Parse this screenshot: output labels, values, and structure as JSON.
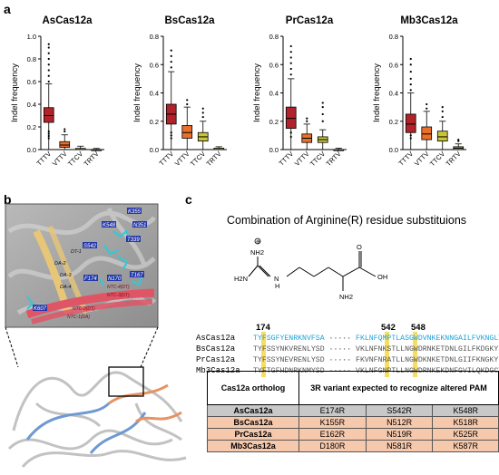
{
  "panel_a": {
    "letter": "a",
    "chart_data": [
      {
        "type": "box",
        "title": "AsCas12a",
        "ylabel": "Indel frequency",
        "ylim": [
          0,
          1.0
        ],
        "yticks": [
          "0.0",
          "0.2",
          "0.4",
          "0.6",
          "0.8",
          "1.0"
        ],
        "categories": [
          "TTTV",
          "VTTV",
          "TTCV",
          "TRTV"
        ],
        "boxes": [
          {
            "min": 0.0,
            "q1": 0.24,
            "median": 0.3,
            "q3": 0.37,
            "max": 0.58,
            "color": "#b0232b",
            "outliers": [
              0.6,
              0.65,
              0.7,
              0.75,
              0.8,
              0.85,
              0.9,
              0.93,
              0.16,
              0.14,
              0.12,
              0.1
            ]
          },
          {
            "min": 0.0,
            "q1": 0.02,
            "median": 0.04,
            "q3": 0.07,
            "max": 0.13,
            "color": "#e8702a",
            "outliers": [
              0.16,
              0.18
            ]
          },
          {
            "min": 0.0,
            "q1": 0.0,
            "median": 0.0,
            "q3": 0.01,
            "max": 0.03,
            "color": "#c9c43a",
            "outliers": []
          },
          {
            "min": 0.0,
            "q1": 0.0,
            "median": 0.0,
            "q3": 0.0,
            "max": 0.01,
            "color": "#9fbf6a",
            "outliers": []
          }
        ]
      },
      {
        "type": "box",
        "title": "BsCas12a",
        "ylabel": "Indel frequency",
        "ylim": [
          0,
          0.8
        ],
        "yticks": [
          "0.0",
          "0.2",
          "0.4",
          "0.6",
          "0.8"
        ],
        "categories": [
          "TTTV",
          "VTTV",
          "TTCV",
          "TRTV"
        ],
        "boxes": [
          {
            "min": 0.0,
            "q1": 0.18,
            "median": 0.25,
            "q3": 0.32,
            "max": 0.55,
            "color": "#b0232b",
            "outliers": [
              0.58,
              0.62,
              0.66,
              0.7,
              0.12,
              0.1,
              0.08
            ]
          },
          {
            "min": 0.0,
            "q1": 0.08,
            "median": 0.12,
            "q3": 0.17,
            "max": 0.3,
            "color": "#e8702a",
            "outliers": [
              0.32,
              0.35
            ]
          },
          {
            "min": 0.0,
            "q1": 0.06,
            "median": 0.09,
            "q3": 0.12,
            "max": 0.2,
            "color": "#c9c43a",
            "outliers": [
              0.23,
              0.26,
              0.29
            ]
          },
          {
            "min": 0.0,
            "q1": 0.0,
            "median": 0.0,
            "q3": 0.01,
            "max": 0.02,
            "color": "#9fbf6a",
            "outliers": []
          }
        ]
      },
      {
        "type": "box",
        "title": "PrCas12a",
        "ylabel": "Indel frequency",
        "ylim": [
          0,
          0.8
        ],
        "yticks": [
          "0.0",
          "0.2",
          "0.4",
          "0.6",
          "0.8"
        ],
        "categories": [
          "TTTV",
          "VTTV",
          "TTCV",
          "TRTV"
        ],
        "boxes": [
          {
            "min": 0.0,
            "q1": 0.15,
            "median": 0.22,
            "q3": 0.3,
            "max": 0.5,
            "color": "#b0232b",
            "outliers": [
              0.53,
              0.57,
              0.61,
              0.65,
              0.69,
              0.73,
              0.12,
              0.09
            ]
          },
          {
            "min": 0.0,
            "q1": 0.05,
            "median": 0.08,
            "q3": 0.11,
            "max": 0.18,
            "color": "#e8702a",
            "outliers": [
              0.2,
              0.22
            ]
          },
          {
            "min": 0.0,
            "q1": 0.05,
            "median": 0.07,
            "q3": 0.09,
            "max": 0.14,
            "color": "#c9c43a",
            "outliers": [
              0.2,
              0.25,
              0.3,
              0.33
            ]
          },
          {
            "min": 0.0,
            "q1": 0.0,
            "median": 0.0,
            "q3": 0.0,
            "max": 0.01,
            "color": "#9fbf6a",
            "outliers": []
          }
        ]
      },
      {
        "type": "box",
        "title": "Mb3Cas12a",
        "ylabel": "Indel frequency",
        "ylim": [
          0,
          0.8
        ],
        "yticks": [
          "0.0",
          "0.2",
          "0.4",
          "0.6",
          "0.8"
        ],
        "categories": [
          "TTTV",
          "VTTV",
          "TTCV",
          "TRTV"
        ],
        "boxes": [
          {
            "min": 0.0,
            "q1": 0.12,
            "median": 0.18,
            "q3": 0.25,
            "max": 0.4,
            "color": "#b0232b",
            "outliers": [
              0.42,
              0.46,
              0.5,
              0.55,
              0.6,
              0.64,
              0.1,
              0.08
            ]
          },
          {
            "min": 0.0,
            "q1": 0.07,
            "median": 0.11,
            "q3": 0.16,
            "max": 0.27,
            "color": "#e8702a",
            "outliers": [
              0.29,
              0.32
            ]
          },
          {
            "min": 0.0,
            "q1": 0.06,
            "median": 0.09,
            "q3": 0.13,
            "max": 0.2,
            "color": "#c9c43a",
            "outliers": [
              0.23,
              0.27,
              0.3
            ]
          },
          {
            "min": 0.0,
            "q1": 0.0,
            "median": 0.01,
            "q3": 0.02,
            "max": 0.04,
            "color": "#9fbf6a",
            "outliers": [
              0.06,
              0.07
            ]
          }
        ]
      }
    ]
  },
  "panel_b": {
    "letter": "b",
    "labels": [
      "K355",
      "N351",
      "K548",
      "T339",
      "S542",
      "DT-1",
      "DA-2",
      "DA-3",
      "DA-4",
      "F174",
      "N170",
      "T167",
      "K607",
      "NTC-4(DT)",
      "NTC-3(DT)",
      "NTC-2(DT)",
      "NTC-1(DA)"
    ]
  },
  "panel_c": {
    "letter": "c",
    "title": "Combination of Arginine(R) residue substituions",
    "molecule_labels": [
      "NH2",
      "H2N",
      "N",
      "H",
      "O",
      "OH",
      "NH2",
      "⊕"
    ],
    "positions": [
      "174",
      "542",
      "548"
    ],
    "sequences": [
      {
        "name": "AsCas12a",
        "left": "TYFSGFYENRKNVFSA",
        "dots": "·····",
        "right": "FKLNFQMPTLASGWDVNKEKNNGAILFVKNGLY"
      },
      {
        "name": "BsCas12a",
        "left": "TYFSSYNKVRENLYSD",
        "dots": "·····",
        "right": "VKLNFNKSTLLNGWDRNKETDNLGILFKDGKY"
      },
      {
        "name": "PrCas12a",
        "left": "TYFSSYNEVRENLYSD",
        "dots": "·····",
        "right": "FKVNFNRATLLNGWDKNKETDNLGIIFKNGKY"
      },
      {
        "name": "Mb3Cas12a",
        "left": "TYFTGFHDNRKNMYSD",
        "dots": "·····",
        "right": "VKLNFGNPTLLNGWDRNKEKDNFGVILQKDGCY"
      }
    ],
    "table": {
      "header_col1": "Cas12a ortholog",
      "header_col2": "3R variant expected to recognize altered PAM",
      "rows": [
        {
          "name": "AsCas12a",
          "v1": "E174R",
          "v2": "S542R",
          "v3": "K548R",
          "color": "#c8c8c8"
        },
        {
          "name": "BsCas12a",
          "v1": "K155R",
          "v2": "N512R",
          "v3": "K518R",
          "color": "#f6c9ad"
        },
        {
          "name": "PrCas12a",
          "v1": "E162R",
          "v2": "N519R",
          "v3": "K525R",
          "color": "#f6c9ad"
        },
        {
          "name": "Mb3Cas12a",
          "v1": "D180R",
          "v2": "N581R",
          "v3": "K587R",
          "color": "#f6c9ad"
        }
      ]
    }
  }
}
